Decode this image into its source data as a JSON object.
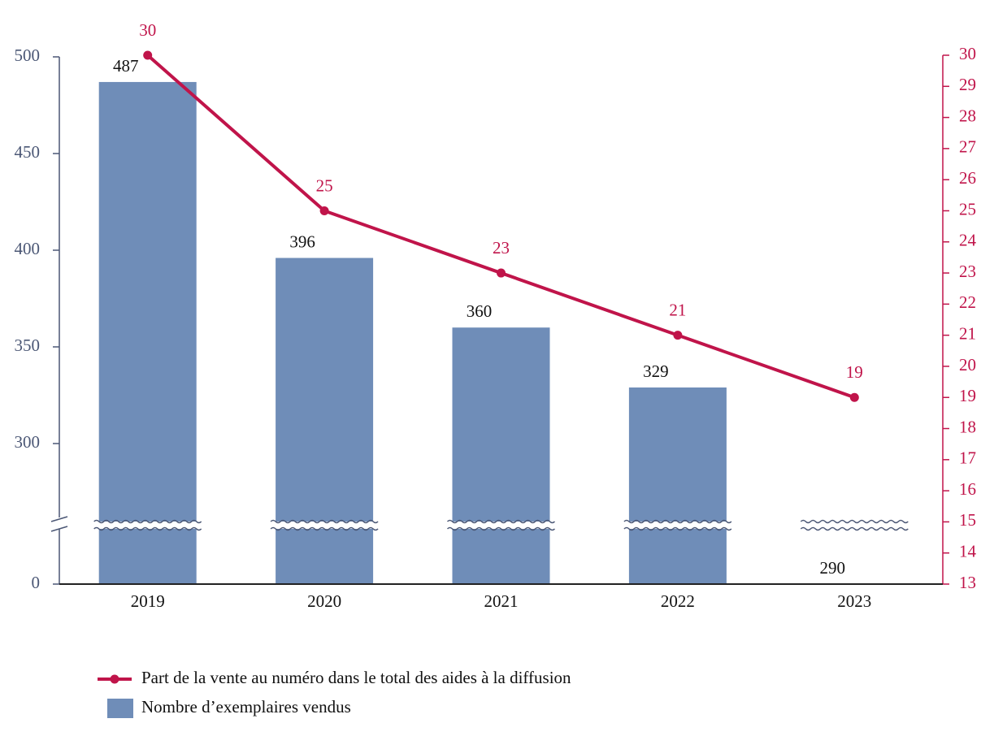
{
  "chart_data": {
    "type": "bar+line",
    "categories": [
      "2019",
      "2020",
      "2021",
      "2022",
      "2023"
    ],
    "series": [
      {
        "name": "Part de la vente au numéro dans le total des aides à la diffusion",
        "type": "line",
        "axis": "y2",
        "color": "#c0144a",
        "values": [
          30,
          25,
          23,
          21,
          19
        ]
      },
      {
        "name": "Nombre d’exemplaires vendus",
        "type": "bar",
        "color": "#6f8db8",
        "values": [
          487,
          396,
          360,
          329,
          290
        ]
      }
    ],
    "ylim": [
      0,
      500
    ],
    "yticks": [
      0,
      300,
      350,
      400,
      450,
      500
    ],
    "y_axis_break": true,
    "y2lim": [
      13,
      30
    ],
    "y2ticks": [
      13,
      14,
      15,
      16,
      17,
      18,
      19,
      20,
      21,
      22,
      23,
      24,
      25,
      26,
      27,
      28,
      29,
      30
    ],
    "legend": "bottom-left"
  }
}
